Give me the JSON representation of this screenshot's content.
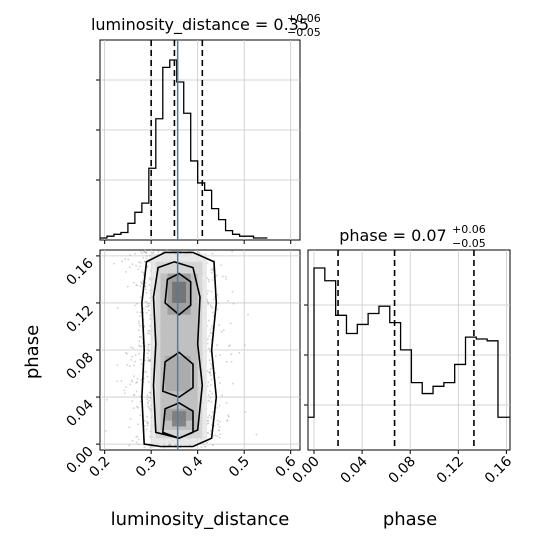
{
  "chart_data": {
    "type": "corner",
    "parameters": [
      "luminosity_distance",
      "phase"
    ],
    "truth_color": "#4a7eaa",
    "panels": {
      "luminosity_distance_hist": {
        "type": "histogram",
        "title": {
          "prefix": "luminosity_distance = 0.35",
          "sup": "+0.06",
          "sub": "−0.05"
        },
        "x_range": [
          0.19,
          0.62
        ],
        "bins": [
          [
            0.19,
            0.205
          ],
          [
            0.205,
            0.22
          ],
          [
            0.22,
            0.235
          ],
          [
            0.235,
            0.25
          ],
          [
            0.25,
            0.265
          ],
          [
            0.265,
            0.28
          ],
          [
            0.28,
            0.295
          ],
          [
            0.295,
            0.31
          ],
          [
            0.31,
            0.325
          ],
          [
            0.325,
            0.34
          ],
          [
            0.34,
            0.355
          ],
          [
            0.355,
            0.37
          ],
          [
            0.37,
            0.385
          ],
          [
            0.385,
            0.4
          ],
          [
            0.4,
            0.415
          ],
          [
            0.415,
            0.43
          ],
          [
            0.43,
            0.445
          ],
          [
            0.445,
            0.46
          ],
          [
            0.46,
            0.475
          ],
          [
            0.475,
            0.49
          ],
          [
            0.49,
            0.505
          ],
          [
            0.505,
            0.52
          ],
          [
            0.52,
            0.535
          ],
          [
            0.535,
            0.55
          ]
        ],
        "counts": [
          0,
          1,
          2,
          3,
          8,
          14,
          19,
          38,
          65,
          93,
          97,
          85,
          68,
          42,
          30,
          26,
          16,
          10,
          4,
          2,
          1,
          1,
          0,
          0
        ],
        "quantile_lines": [
          0.3,
          0.35,
          0.41
        ],
        "truth": 0.357
      },
      "phase_hist": {
        "type": "histogram",
        "title": {
          "prefix": "phase = 0.07",
          "sup": "+0.06",
          "sub": "−0.05"
        },
        "x_range": [
          -0.005,
          0.163
        ],
        "bins": [
          [
            -0.005,
            0.0
          ],
          [
            0.0,
            0.009
          ],
          [
            0.009,
            0.018
          ],
          [
            0.018,
            0.027
          ],
          [
            0.027,
            0.036
          ],
          [
            0.036,
            0.045
          ],
          [
            0.045,
            0.054
          ],
          [
            0.054,
            0.063
          ],
          [
            0.063,
            0.072
          ],
          [
            0.072,
            0.081
          ],
          [
            0.081,
            0.09
          ],
          [
            0.09,
            0.099
          ],
          [
            0.099,
            0.108
          ],
          [
            0.108,
            0.117
          ],
          [
            0.117,
            0.126
          ],
          [
            0.126,
            0.135
          ],
          [
            0.135,
            0.144
          ],
          [
            0.144,
            0.153
          ],
          [
            0.153,
            0.163
          ]
        ],
        "counts": [
          18,
          100,
          93,
          74,
          64,
          69,
          75,
          79,
          70,
          55,
          37,
          31,
          35,
          37,
          47,
          62,
          61,
          60,
          18
        ],
        "quantile_lines": [
          0.02,
          0.067,
          0.133
        ]
      },
      "joint": {
        "type": "scatter_density_contour",
        "xlabel": "luminosity_distance",
        "ylabel": "phase",
        "x_range": [
          0.19,
          0.62
        ],
        "y_range": [
          -0.005,
          0.165
        ],
        "truth": 0.357
      }
    },
    "x_ticks_lumdist": [
      "0.2",
      "0.3",
      "0.4",
      "0.5",
      "0.6"
    ],
    "x_ticks_phase": [
      "0.00",
      "0.04",
      "0.08",
      "0.12",
      "0.16"
    ],
    "y_ticks_phase": [
      "0.00",
      "0.04",
      "0.08",
      "0.12",
      "0.16"
    ]
  }
}
